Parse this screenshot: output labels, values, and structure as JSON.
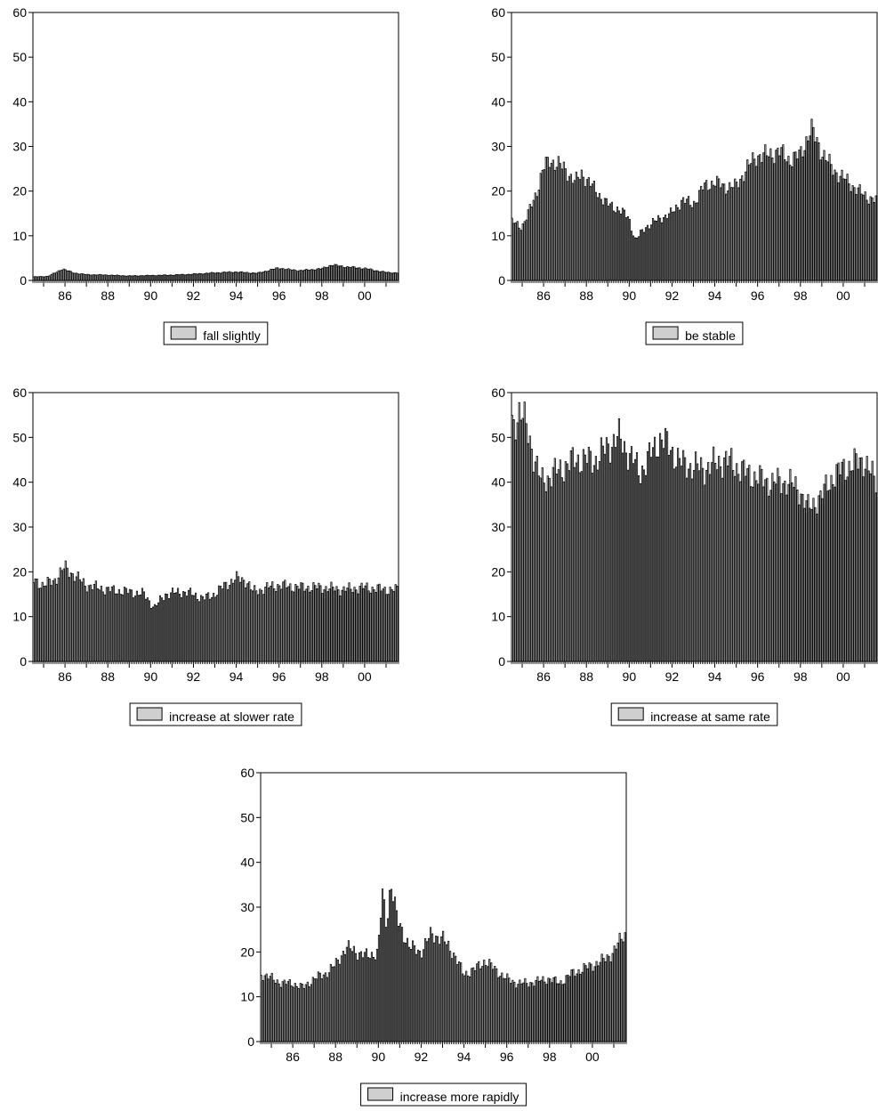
{
  "chart_data": [
    {
      "type": "bar",
      "legend": "fall slightly",
      "legend_placement": "bottom-center",
      "ylim": [
        0,
        60
      ],
      "yticks": [
        "0",
        "10",
        "20",
        "30",
        "40",
        "50",
        "60"
      ],
      "xtick_labels": [
        "86",
        "88",
        "90",
        "92",
        "94",
        "96",
        "98",
        "00"
      ],
      "x_start": "1984-07",
      "x_end": "2001-07",
      "frequency": "monthly",
      "grid": false,
      "anchors": [
        [
          1984.6,
          0.8
        ],
        [
          1985.2,
          0.9
        ],
        [
          1985.6,
          1.8
        ],
        [
          1985.9,
          2.6
        ],
        [
          1986.4,
          1.7
        ],
        [
          1987.0,
          1.3
        ],
        [
          1988.0,
          1.2
        ],
        [
          1989.0,
          1.0
        ],
        [
          1990.0,
          1.1
        ],
        [
          1991.0,
          1.2
        ],
        [
          1992.0,
          1.4
        ],
        [
          1993.0,
          1.7
        ],
        [
          1994.0,
          1.9
        ],
        [
          1995.0,
          1.6
        ],
        [
          1996.0,
          2.8
        ],
        [
          1996.5,
          2.4
        ],
        [
          1997.0,
          2.2
        ],
        [
          1998.0,
          2.6
        ],
        [
          1998.5,
          3.5
        ],
        [
          1999.0,
          3.1
        ],
        [
          2000.0,
          2.7
        ],
        [
          2001.0,
          1.8
        ],
        [
          2001.5,
          1.7
        ]
      ]
    },
    {
      "type": "bar",
      "legend": "be stable",
      "legend_placement": "bottom-center",
      "ylim": [
        0,
        60
      ],
      "yticks": [
        "0",
        "10",
        "20",
        "30",
        "40",
        "50",
        "60"
      ],
      "xtick_labels": [
        "86",
        "88",
        "90",
        "92",
        "94",
        "96",
        "98",
        "00"
      ],
      "x_start": "1984-07",
      "x_end": "2001-07",
      "frequency": "monthly",
      "grid": false,
      "anchors": [
        [
          1984.6,
          13
        ],
        [
          1985.0,
          12
        ],
        [
          1985.3,
          15
        ],
        [
          1985.7,
          20
        ],
        [
          1986.0,
          25
        ],
        [
          1986.3,
          27
        ],
        [
          1987.0,
          25
        ],
        [
          1987.5,
          22
        ],
        [
          1987.8,
          24
        ],
        [
          1988.3,
          21
        ],
        [
          1989.0,
          17
        ],
        [
          1989.5,
          16
        ],
        [
          1990.0,
          14
        ],
        [
          1990.3,
          9
        ],
        [
          1990.8,
          12
        ],
        [
          1991.5,
          14
        ],
        [
          1992.0,
          15
        ],
        [
          1992.5,
          18
        ],
        [
          1993.0,
          17
        ],
        [
          1993.5,
          21
        ],
        [
          1994.0,
          22
        ],
        [
          1994.5,
          21
        ],
        [
          1995.0,
          21
        ],
        [
          1995.5,
          25
        ],
        [
          1996.0,
          28
        ],
        [
          1996.5,
          28
        ],
        [
          1997.0,
          29
        ],
        [
          1997.5,
          27
        ],
        [
          1998.0,
          28
        ],
        [
          1998.5,
          34
        ],
        [
          1999.0,
          29
        ],
        [
          1999.5,
          25
        ],
        [
          2000.0,
          23
        ],
        [
          2000.5,
          21
        ],
        [
          2001.0,
          19
        ],
        [
          2001.5,
          18
        ]
      ]
    },
    {
      "type": "bar",
      "legend": "increase at slower rate",
      "legend_placement": "bottom-center",
      "ylim": [
        0,
        60
      ],
      "yticks": [
        "0",
        "10",
        "20",
        "30",
        "40",
        "50",
        "60"
      ],
      "xtick_labels": [
        "86",
        "88",
        "90",
        "92",
        "94",
        "96",
        "98",
        "00"
      ],
      "x_start": "1984-07",
      "x_end": "2001-07",
      "frequency": "monthly",
      "grid": false,
      "anchors": [
        [
          1984.6,
          18
        ],
        [
          1985.0,
          17
        ],
        [
          1985.5,
          18
        ],
        [
          1986.0,
          21
        ],
        [
          1986.5,
          19
        ],
        [
          1987.0,
          17
        ],
        [
          1988.0,
          16
        ],
        [
          1989.0,
          15.5
        ],
        [
          1989.7,
          15
        ],
        [
          1990.2,
          12
        ],
        [
          1990.7,
          15
        ],
        [
          1991.5,
          15.5
        ],
        [
          1992.0,
          15
        ],
        [
          1992.5,
          14
        ],
        [
          1993.0,
          15
        ],
        [
          1993.5,
          17
        ],
        [
          1994.0,
          18.5
        ],
        [
          1994.5,
          18
        ],
        [
          1994.8,
          15.5
        ],
        [
          1995.5,
          16.5
        ],
        [
          1996.0,
          17
        ],
        [
          1997.0,
          16.5
        ],
        [
          1998.0,
          16.5
        ],
        [
          1999.0,
          16
        ],
        [
          2000.0,
          16.5
        ],
        [
          2001.0,
          16
        ],
        [
          2001.5,
          16
        ]
      ]
    },
    {
      "type": "bar",
      "legend": "increase at same rate",
      "legend_placement": "bottom-center",
      "ylim": [
        0,
        60
      ],
      "yticks": [
        "0",
        "10",
        "20",
        "30",
        "40",
        "50",
        "60"
      ],
      "xtick_labels": [
        "86",
        "88",
        "90",
        "92",
        "94",
        "96",
        "98",
        "00"
      ],
      "x_start": "1984-07",
      "x_end": "2001-07",
      "frequency": "monthly",
      "grid": false,
      "anchors": [
        [
          1984.6,
          53
        ],
        [
          1984.9,
          56
        ],
        [
          1985.3,
          51
        ],
        [
          1985.6,
          45
        ],
        [
          1985.9,
          40
        ],
        [
          1986.5,
          42
        ],
        [
          1987.5,
          45
        ],
        [
          1988.5,
          45
        ],
        [
          1989.0,
          48
        ],
        [
          1989.5,
          50
        ],
        [
          1990.2,
          45
        ],
        [
          1990.5,
          42
        ],
        [
          1991.0,
          46
        ],
        [
          1991.5,
          50
        ],
        [
          1992.0,
          47
        ],
        [
          1992.5,
          44
        ],
        [
          1993.5,
          43
        ],
        [
          1994.5,
          45
        ],
        [
          1995.5,
          42
        ],
        [
          1996.5,
          40
        ],
        [
          1997.5,
          40
        ],
        [
          1998.0,
          38
        ],
        [
          1998.4,
          34
        ],
        [
          1999.0,
          37
        ],
        [
          1999.5,
          41
        ],
        [
          2000.0,
          43
        ],
        [
          2000.5,
          44
        ],
        [
          2001.0,
          45
        ],
        [
          2001.5,
          40
        ]
      ]
    },
    {
      "type": "bar",
      "legend": "increase more rapidly",
      "legend_placement": "bottom-center",
      "ylim": [
        0,
        60
      ],
      "yticks": [
        "0",
        "10",
        "20",
        "30",
        "40",
        "50",
        "60"
      ],
      "xtick_labels": [
        "86",
        "88",
        "90",
        "92",
        "94",
        "96",
        "98",
        "00"
      ],
      "x_start": "1984-07",
      "x_end": "2001-07",
      "frequency": "monthly",
      "grid": false,
      "anchors": [
        [
          1984.6,
          15
        ],
        [
          1985.5,
          13
        ],
        [
          1986.0,
          13
        ],
        [
          1986.5,
          12
        ],
        [
          1987.0,
          14
        ],
        [
          1987.5,
          15
        ],
        [
          1988.0,
          17
        ],
        [
          1988.5,
          21
        ],
        [
          1989.0,
          20
        ],
        [
          1989.5,
          19
        ],
        [
          1990.0,
          20
        ],
        [
          1990.2,
          33
        ],
        [
          1990.4,
          26
        ],
        [
          1990.6,
          36
        ],
        [
          1990.9,
          27
        ],
        [
          1991.5,
          21
        ],
        [
          1992.0,
          20
        ],
        [
          1992.5,
          24
        ],
        [
          1993.0,
          23
        ],
        [
          1993.5,
          20
        ],
        [
          1994.0,
          15
        ],
        [
          1994.5,
          16
        ],
        [
          1995.0,
          18
        ],
        [
          1995.5,
          16
        ],
        [
          1996.0,
          14
        ],
        [
          1996.5,
          13
        ],
        [
          1997.0,
          13
        ],
        [
          1998.0,
          14
        ],
        [
          1998.5,
          13
        ],
        [
          1999.0,
          15
        ],
        [
          1999.5,
          16
        ],
        [
          2000.0,
          17
        ],
        [
          2000.5,
          18
        ],
        [
          2001.0,
          20
        ],
        [
          2001.5,
          24
        ]
      ]
    }
  ]
}
